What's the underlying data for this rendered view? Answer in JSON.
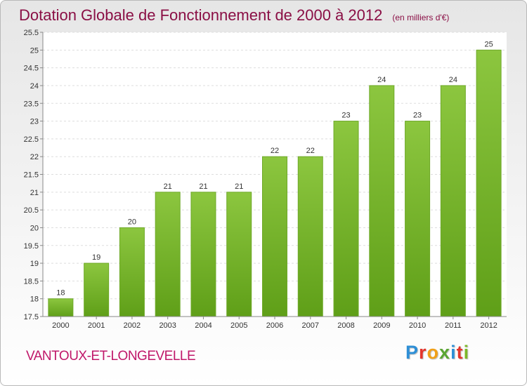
{
  "header": {
    "title": "Dotation Globale de Fonctionnement de 2000 à 2012",
    "unit": "(en milliers d'€)"
  },
  "footer": {
    "commune": "VANTOUX-ET-LONGEVELLE",
    "logo_letters": [
      "P",
      "r",
      "o",
      "x",
      "i",
      "t",
      "i"
    ],
    "logo_colors": [
      "#2e8fd6",
      "#e4352c",
      "#f0a019",
      "#5aa632",
      "#2e8fd6",
      "#e4352c",
      "#7cb829"
    ]
  },
  "chart_data": {
    "type": "bar",
    "categories": [
      "2000",
      "2001",
      "2002",
      "2003",
      "2004",
      "2005",
      "2006",
      "2007",
      "2008",
      "2009",
      "2010",
      "2011",
      "2012"
    ],
    "values": [
      18,
      19,
      20,
      21,
      21,
      21,
      22,
      22,
      23,
      24,
      23,
      24,
      25
    ],
    "data_labels": [
      "18",
      "19",
      "20",
      "21",
      "21",
      "21",
      "22",
      "22",
      "23",
      "24",
      "23",
      "24",
      "25"
    ],
    "title": "Dotation Globale de Fonctionnement de 2000 à 2012",
    "xlabel": "",
    "ylabel": "",
    "ylim": [
      17.5,
      25.5
    ],
    "yticks": [
      "17.5",
      "18",
      "18.5",
      "19",
      "19.5",
      "20",
      "20.5",
      "21",
      "21.5",
      "22",
      "22.5",
      "23",
      "23.5",
      "24",
      "24.5",
      "25",
      "25.5"
    ],
    "grid": true,
    "bar_color": "#8cc63f",
    "bar_color_dark": "#5f9f18"
  }
}
